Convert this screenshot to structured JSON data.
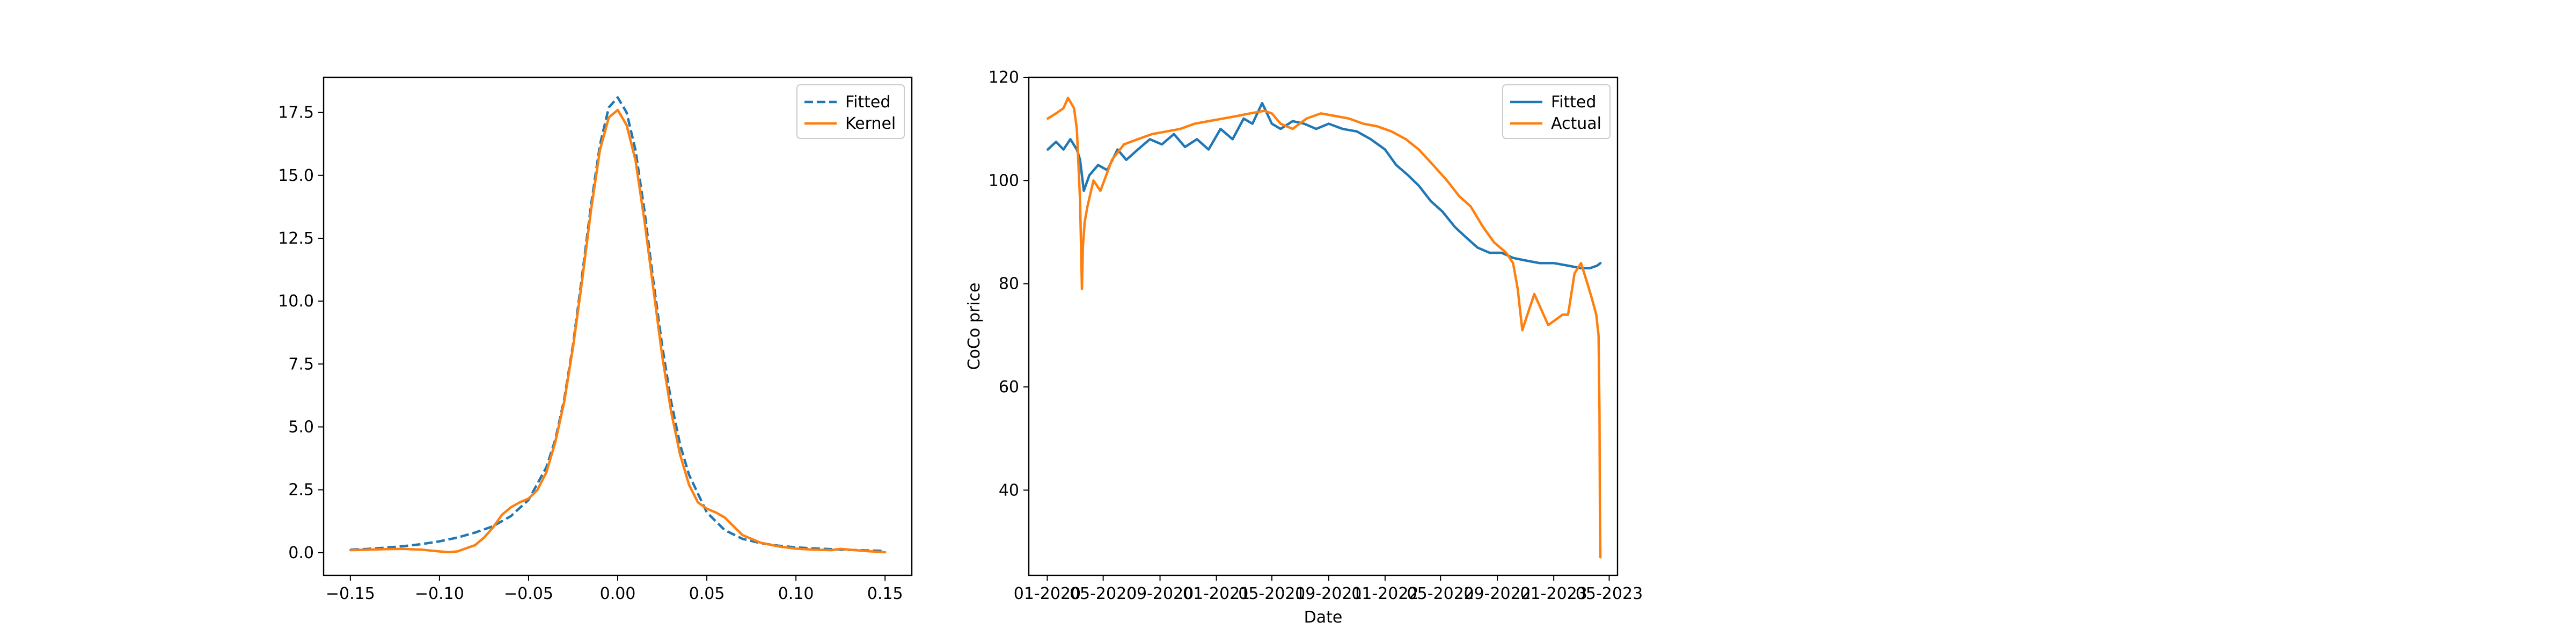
{
  "chart_data": [
    {
      "type": "line",
      "title": "",
      "xlabel": "",
      "ylabel": "",
      "xlim": [
        -0.165,
        0.165
      ],
      "ylim": [
        -0.9,
        18.9
      ],
      "xticks": [
        -0.15,
        -0.1,
        -0.05,
        0.0,
        0.05,
        0.1,
        0.15
      ],
      "xtick_labels": [
        "−0.15",
        "−0.10",
        "−0.05",
        "0.00",
        "0.05",
        "0.10",
        "0.15"
      ],
      "yticks": [
        0.0,
        2.5,
        5.0,
        7.5,
        10.0,
        12.5,
        15.0,
        17.5
      ],
      "ytick_labels": [
        "0.0",
        "2.5",
        "5.0",
        "7.5",
        "10.0",
        "12.5",
        "15.0",
        "17.5"
      ],
      "grid": false,
      "legend": "top-right",
      "series": [
        {
          "name": "Fitted",
          "color": "#1f77b4",
          "dashed": true,
          "x": [
            -0.15,
            -0.14,
            -0.13,
            -0.12,
            -0.11,
            -0.1,
            -0.09,
            -0.08,
            -0.07,
            -0.06,
            -0.05,
            -0.04,
            -0.035,
            -0.03,
            -0.025,
            -0.02,
            -0.015,
            -0.01,
            -0.005,
            0.0,
            0.005,
            0.01,
            0.015,
            0.02,
            0.025,
            0.03,
            0.035,
            0.04,
            0.05,
            0.06,
            0.07,
            0.08,
            0.09,
            0.1,
            0.11,
            0.12,
            0.13,
            0.14,
            0.15
          ],
          "y": [
            0.12,
            0.15,
            0.2,
            0.26,
            0.34,
            0.45,
            0.6,
            0.8,
            1.05,
            1.45,
            2.1,
            3.4,
            4.5,
            6.1,
            8.3,
            11.0,
            13.8,
            16.2,
            17.7,
            18.1,
            17.5,
            16.0,
            13.6,
            10.8,
            8.2,
            6.0,
            4.3,
            3.1,
            1.6,
            0.9,
            0.55,
            0.38,
            0.28,
            0.21,
            0.17,
            0.14,
            0.11,
            0.09,
            0.07
          ]
        },
        {
          "name": "Kernel",
          "color": "#ff7f0e",
          "dashed": false,
          "x": [
            -0.15,
            -0.14,
            -0.13,
            -0.12,
            -0.11,
            -0.1,
            -0.095,
            -0.09,
            -0.08,
            -0.075,
            -0.07,
            -0.065,
            -0.06,
            -0.055,
            -0.05,
            -0.045,
            -0.04,
            -0.035,
            -0.03,
            -0.025,
            -0.02,
            -0.015,
            -0.01,
            -0.005,
            0.0,
            0.005,
            0.01,
            0.015,
            0.02,
            0.025,
            0.03,
            0.035,
            0.04,
            0.045,
            0.05,
            0.055,
            0.06,
            0.065,
            0.07,
            0.08,
            0.09,
            0.1,
            0.11,
            0.12,
            0.125,
            0.13,
            0.14,
            0.15
          ],
          "y": [
            0.1,
            0.12,
            0.14,
            0.15,
            0.12,
            0.05,
            0.02,
            0.05,
            0.3,
            0.6,
            1.0,
            1.5,
            1.8,
            2.0,
            2.15,
            2.5,
            3.2,
            4.4,
            6.0,
            8.2,
            10.8,
            13.6,
            16.0,
            17.3,
            17.6,
            17.0,
            15.6,
            13.2,
            10.5,
            7.8,
            5.6,
            3.9,
            2.7,
            2.0,
            1.75,
            1.6,
            1.4,
            1.05,
            0.7,
            0.4,
            0.25,
            0.16,
            0.12,
            0.1,
            0.15,
            0.12,
            0.06,
            0.02
          ]
        }
      ]
    },
    {
      "type": "line",
      "title": "",
      "xlabel": "Date",
      "ylabel": "CoCo price",
      "xlim": [
        "2019-11-22",
        "2023-05-19"
      ],
      "ylim": [
        23.5,
        120.0
      ],
      "xticks": [
        "2020-01-01",
        "2020-05-01",
        "2020-09-01",
        "2021-01-01",
        "2021-05-01",
        "2021-09-01",
        "2022-01-01",
        "2022-05-01",
        "2022-09-01",
        "2023-01-01",
        "2023-05-01"
      ],
      "xtick_labels": [
        "01-2020",
        "05-2020",
        "09-2020",
        "01-2021",
        "05-2021",
        "09-2021",
        "01-2022",
        "05-2022",
        "09-2022",
        "01-2023",
        "05-2023"
      ],
      "yticks": [
        40,
        60,
        80,
        100,
        120
      ],
      "ytick_labels": [
        "40",
        "60",
        "80",
        "100",
        "120"
      ],
      "grid": false,
      "legend": "top-right",
      "series": [
        {
          "name": "Fitted",
          "color": "#1f77b4",
          "dashed": false,
          "x": [
            "2020-01-02",
            "2020-01-20",
            "2020-02-05",
            "2020-02-20",
            "2020-03-05",
            "2020-03-12",
            "2020-03-20",
            "2020-04-01",
            "2020-04-20",
            "2020-05-10",
            "2020-06-01",
            "2020-06-20",
            "2020-07-15",
            "2020-08-10",
            "2020-09-05",
            "2020-10-01",
            "2020-10-25",
            "2020-11-20",
            "2020-12-15",
            "2021-01-10",
            "2021-02-05",
            "2021-03-01",
            "2021-03-20",
            "2021-04-10",
            "2021-05-01",
            "2021-05-20",
            "2021-06-15",
            "2021-07-10",
            "2021-08-05",
            "2021-09-01",
            "2021-10-01",
            "2021-11-01",
            "2021-12-01",
            "2022-01-01",
            "2022-01-25",
            "2022-02-20",
            "2022-03-15",
            "2022-04-10",
            "2022-05-05",
            "2022-06-01",
            "2022-06-25",
            "2022-07-20",
            "2022-08-15",
            "2022-09-10",
            "2022-10-05",
            "2022-11-01",
            "2022-12-01",
            "2023-01-01",
            "2023-02-01",
            "2023-03-01",
            "2023-03-20",
            "2023-04-05",
            "2023-04-12"
          ],
          "y": [
            106,
            107.5,
            106,
            108,
            106,
            104,
            98,
            101,
            103,
            102,
            106,
            104,
            106,
            108,
            107,
            109,
            106.5,
            108,
            106,
            110,
            108,
            112,
            111,
            115,
            111,
            110,
            111.5,
            111,
            110,
            111,
            110,
            109.5,
            108,
            106,
            103,
            101,
            99,
            96,
            94,
            91,
            89,
            87,
            86,
            86,
            85,
            84.5,
            84,
            84,
            83.5,
            83,
            83,
            83.5,
            84
          ]
        },
        {
          "name": "Actual",
          "color": "#ff7f0e",
          "dashed": false,
          "x": [
            "2020-01-02",
            "2020-01-20",
            "2020-02-05",
            "2020-02-15",
            "2020-02-28",
            "2020-03-05",
            "2020-03-12",
            "2020-03-16",
            "2020-03-18",
            "2020-03-22",
            "2020-03-28",
            "2020-04-10",
            "2020-04-25",
            "2020-05-20",
            "2020-06-15",
            "2020-07-15",
            "2020-08-15",
            "2020-09-15",
            "2020-10-15",
            "2020-11-15",
            "2020-12-15",
            "2021-01-15",
            "2021-02-15",
            "2021-03-15",
            "2021-04-15",
            "2021-05-01",
            "2021-05-20",
            "2021-06-15",
            "2021-07-15",
            "2021-08-15",
            "2021-09-15",
            "2021-10-15",
            "2021-11-15",
            "2021-12-15",
            "2022-01-15",
            "2022-02-15",
            "2022-03-15",
            "2022-04-15",
            "2022-05-15",
            "2022-06-10",
            "2022-07-05",
            "2022-08-01",
            "2022-08-25",
            "2022-09-20",
            "2022-10-05",
            "2022-10-15",
            "2022-10-25",
            "2022-11-05",
            "2022-11-20",
            "2022-12-05",
            "2022-12-20",
            "2023-01-05",
            "2023-01-20",
            "2023-02-01",
            "2023-02-15",
            "2023-03-01",
            "2023-03-15",
            "2023-03-25",
            "2023-04-03",
            "2023-04-08",
            "2023-04-10",
            "2023-04-11",
            "2023-04-12"
          ],
          "y": [
            112,
            113,
            114,
            116,
            114,
            110,
            96,
            79,
            87,
            92,
            95,
            100,
            98,
            104,
            107,
            108,
            109,
            109.5,
            110,
            111,
            111.5,
            112,
            112.5,
            113,
            113.5,
            113,
            111,
            110,
            112,
            113,
            112.5,
            112,
            111,
            110.5,
            109.5,
            108,
            106,
            103,
            100,
            97,
            95,
            91,
            88,
            86,
            84,
            79,
            71,
            74,
            78,
            75,
            72,
            73,
            74,
            74,
            82,
            84,
            80,
            77,
            74,
            70,
            55,
            35,
            27
          ]
        }
      ]
    }
  ]
}
